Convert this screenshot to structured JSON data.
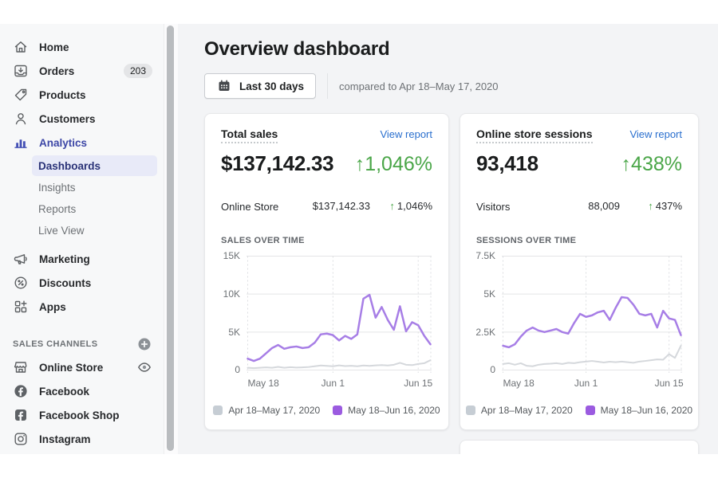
{
  "sidebar": {
    "items": [
      {
        "label": "Home"
      },
      {
        "label": "Orders",
        "badge": "203"
      },
      {
        "label": "Products"
      },
      {
        "label": "Customers"
      },
      {
        "label": "Analytics"
      },
      {
        "label": "Marketing"
      },
      {
        "label": "Discounts"
      },
      {
        "label": "Apps"
      }
    ],
    "analytics_children": [
      {
        "label": "Dashboards"
      },
      {
        "label": "Insights"
      },
      {
        "label": "Reports"
      },
      {
        "label": "Live View"
      }
    ],
    "sales_channels": {
      "heading": "SALES CHANNELS",
      "items": [
        {
          "label": "Online Store"
        },
        {
          "label": "Facebook"
        },
        {
          "label": "Facebook Shop"
        },
        {
          "label": "Instagram"
        }
      ]
    }
  },
  "header": {
    "title": "Overview dashboard",
    "date_range_button": "Last 30 days",
    "compare_text": "compared to Apr 18–May 17, 2020"
  },
  "cards": [
    {
      "title": "Total sales",
      "link": "View report",
      "value": "$137,142.33",
      "change": "↑1,046%",
      "row": {
        "label": "Online Store",
        "value": "$137,142.33",
        "arrow": "↑",
        "change": "1,046%"
      },
      "section_label": "SALES OVER TIME"
    },
    {
      "title": "Online store sessions",
      "link": "View report",
      "value": "93,418",
      "change": "↑438%",
      "row": {
        "label": "Visitors",
        "value": "88,009",
        "arrow": "↑",
        "change": "437%"
      },
      "section_label": "SESSIONS OVER TIME"
    }
  ],
  "colors": {
    "link_blue": "#2a6fce",
    "positive_green": "#4aa648",
    "accent_indigo": "#3c46a6",
    "selected_item_bg": "#e8eaf8",
    "grid": "#e4e5e7",
    "current_series": "#a77ee6",
    "previous_series": "#d5d8dc"
  },
  "chart_data": [
    {
      "type": "line",
      "title": "SALES OVER TIME",
      "xlabel": "",
      "ylabel": "",
      "ylim": [
        0,
        15000
      ],
      "grid": true,
      "legend_position": "bottom",
      "yticks": [
        {
          "v": 0,
          "label": "0"
        },
        {
          "v": 5000,
          "label": "5K"
        },
        {
          "v": 10000,
          "label": "10K"
        },
        {
          "v": 15000,
          "label": "15K"
        }
      ],
      "xticks": [
        {
          "index": 0,
          "label": "May 18"
        },
        {
          "index": 14,
          "label": "Jun 1"
        },
        {
          "index": 28,
          "label": "Jun 15"
        }
      ],
      "series": [
        {
          "name": "Apr 18–May 17, 2020",
          "color": "#d5d8dc",
          "swatch_color": "#c6cdd4",
          "values": [
            300,
            250,
            300,
            350,
            300,
            420,
            300,
            380,
            330,
            360,
            400,
            500,
            600,
            550,
            500,
            620,
            520,
            560,
            500,
            600,
            550,
            620,
            650,
            600,
            700,
            950,
            700,
            650,
            800,
            900,
            1300
          ]
        },
        {
          "name": "May 18–Jun 16, 2020",
          "color": "#a77ee6",
          "swatch_color": "#9b5be0",
          "values": [
            1500,
            1200,
            1500,
            2200,
            2900,
            3300,
            2800,
            3000,
            3100,
            2900,
            3000,
            3600,
            4700,
            4800,
            4600,
            3900,
            4500,
            4100,
            4700,
            9400,
            9900,
            6900,
            8300,
            6600,
            5300,
            8400,
            5100,
            6300,
            5900,
            4500,
            3400
          ]
        }
      ]
    },
    {
      "type": "line",
      "title": "SESSIONS OVER TIME",
      "xlabel": "",
      "ylabel": "",
      "ylim": [
        0,
        7500
      ],
      "grid": true,
      "legend_position": "bottom",
      "yticks": [
        {
          "v": 0,
          "label": "0"
        },
        {
          "v": 2500,
          "label": "2.5K"
        },
        {
          "v": 5000,
          "label": "5K"
        },
        {
          "v": 7500,
          "label": "7.5K"
        }
      ],
      "xticks": [
        {
          "index": 0,
          "label": "May 18"
        },
        {
          "index": 14,
          "label": "Jun 1"
        },
        {
          "index": 28,
          "label": "Jun 15"
        }
      ],
      "series": [
        {
          "name": "Apr 18–May 17, 2020",
          "color": "#d5d8dc",
          "swatch_color": "#c6cdd4",
          "values": [
            400,
            450,
            350,
            450,
            280,
            250,
            350,
            400,
            420,
            450,
            400,
            480,
            450,
            520,
            560,
            600,
            550,
            500,
            550,
            520,
            560,
            520,
            480,
            560,
            600,
            650,
            700,
            680,
            1050,
            800,
            1600
          ]
        },
        {
          "name": "May 18–Jun 16, 2020",
          "color": "#a77ee6",
          "swatch_color": "#9b5be0",
          "values": [
            1600,
            1500,
            1700,
            2200,
            2600,
            2800,
            2600,
            2500,
            2600,
            2700,
            2500,
            2400,
            3100,
            3700,
            3500,
            3600,
            3800,
            3900,
            3300,
            4100,
            4800,
            4750,
            4300,
            3700,
            3600,
            3700,
            2800,
            3900,
            3400,
            3300,
            2300
          ]
        }
      ]
    }
  ]
}
